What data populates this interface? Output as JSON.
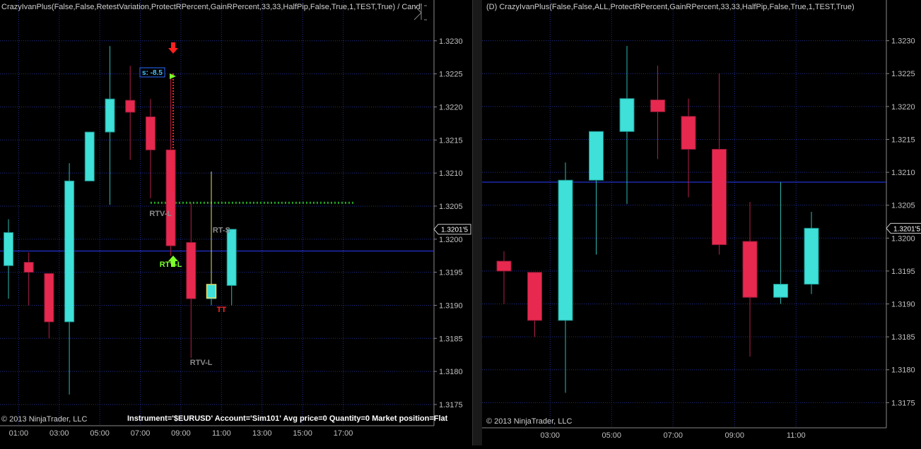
{
  "left_panel": {
    "title": "CrazyIvanPlus(False,False,RetestVariation,ProtectRPercent,GainRPercent,33,33,HalfPip,False,True,1,TEST,True) / Candl",
    "copyright": "© 2013 NinjaTrader, LLC",
    "account_info": "Instrument='$EURUSD' Account='Sim101' Avg price=0 Quantity=0 Market position=Flat",
    "current_price_label": "1.3201'5",
    "stop_label": "s: -8.5"
  },
  "right_panel": {
    "title": "(D) CrazyIvanPlus(False,False,ALL,ProtectRPercent,GainRPercent,33,33,HalfPip,False,True,1,TEST,True)",
    "copyright": "© 2013 NinjaTrader, LLC",
    "current_price_label": "1.3201'5"
  },
  "colors": {
    "up": "#3ee0d8",
    "down": "#e8294f",
    "doji": "#3ee0d8",
    "grid": "#1f2f8f",
    "hline": "#2a3cff",
    "axis_text": "#c0c0c0",
    "dotted_green": "#22aa22",
    "dotted_red": "#ff2020"
  },
  "chart_data": [
    {
      "type": "candlestick",
      "name": "left",
      "y_range": [
        1.31735,
        1.32335
      ],
      "y_ticks": [
        "1.3230",
        "1.3225",
        "1.3220",
        "1.3215",
        "1.3210",
        "1.3205",
        "1.3200",
        "1.3195",
        "1.3190",
        "1.3185",
        "1.3180",
        "1.3175"
      ],
      "x_ticks": [
        "01:00",
        "03:00",
        "05:00",
        "07:00",
        "09:00",
        "11:00",
        "13:00",
        "15:00",
        "17:00"
      ],
      "horizontal_line": 1.31982,
      "candles": [
        {
          "t": "00:30",
          "o": 1.3196,
          "h": 1.3203,
          "l": 1.3191,
          "c": 1.3201
        },
        {
          "t": "01:30",
          "o": 1.31965,
          "h": 1.3198,
          "l": 1.319,
          "c": 1.3195
        },
        {
          "t": "02:30",
          "o": 1.31948,
          "h": 1.31948,
          "l": 1.3185,
          "c": 1.31875
        },
        {
          "t": "03:30",
          "o": 1.31875,
          "h": 1.32115,
          "l": 1.31765,
          "c": 1.32088
        },
        {
          "t": "04:30",
          "o": 1.32088,
          "h": 1.32162,
          "l": 1.32088,
          "c": 1.32162
        },
        {
          "t": "05:30",
          "o": 1.32162,
          "h": 1.32292,
          "l": 1.32052,
          "c": 1.32212
        },
        {
          "t": "06:30",
          "o": 1.3221,
          "h": 1.32262,
          "l": 1.3212,
          "c": 1.32192
        },
        {
          "t": "07:30",
          "o": 1.32185,
          "h": 1.32212,
          "l": 1.32062,
          "c": 1.32135
        },
        {
          "t": "08:30",
          "o": 1.32135,
          "h": 1.3225,
          "l": 1.31975,
          "c": 1.3199
        },
        {
          "t": "09:30",
          "o": 1.31995,
          "h": 1.32055,
          "l": 1.3182,
          "c": 1.3191
        },
        {
          "t": "10:30",
          "o": 1.3191,
          "h": 1.32085,
          "l": 1.319,
          "c": 1.3193
        },
        {
          "t": "11:30",
          "o": 1.3193,
          "h": 1.32015,
          "l": 1.319,
          "c": 1.32015
        }
      ],
      "annotations": [
        {
          "text": "RTV-L",
          "t": "08:00",
          "y": 1.32035,
          "color": "#8a8a8a"
        },
        {
          "text": "RTV-L",
          "t": "08:30",
          "y": 1.31958,
          "color": "#7cff2a"
        },
        {
          "text": "RT-S",
          "t": "11:00",
          "y": 1.3201,
          "color": "#8a8a8a"
        },
        {
          "text": "TT",
          "t": "11:00",
          "y": 1.3189,
          "color": "#ff2a2a"
        },
        {
          "text": "RTV-L",
          "t": "10:00",
          "y": 1.3181,
          "color": "#8a8a8a"
        }
      ],
      "green_dotted_level": 1.32055,
      "green_dotted_range": [
        "07:30",
        "17:30"
      ]
    },
    {
      "type": "candlestick",
      "name": "right",
      "y_range": [
        1.3173,
        1.32335
      ],
      "y_ticks": [
        "1.3230",
        "1.3225",
        "1.3220",
        "1.3215",
        "1.3210",
        "1.3205",
        "1.3200",
        "1.3195",
        "1.3190",
        "1.3185",
        "1.3180",
        "1.3175"
      ],
      "x_ticks": [
        "03:00",
        "05:00",
        "07:00",
        "09:00",
        "11:00"
      ],
      "horizontal_line": 1.32085,
      "candles": [
        {
          "t": "01:30",
          "o": 1.31965,
          "h": 1.3198,
          "l": 1.319,
          "c": 1.3195
        },
        {
          "t": "02:30",
          "o": 1.31948,
          "h": 1.31948,
          "l": 1.3185,
          "c": 1.31875
        },
        {
          "t": "03:30",
          "o": 1.31875,
          "h": 1.32115,
          "l": 1.31765,
          "c": 1.32088
        },
        {
          "t": "04:30",
          "o": 1.32088,
          "h": 1.32162,
          "l": 1.31975,
          "c": 1.32162
        },
        {
          "t": "05:30",
          "o": 1.32162,
          "h": 1.32292,
          "l": 1.32052,
          "c": 1.32212
        },
        {
          "t": "06:30",
          "o": 1.3221,
          "h": 1.32262,
          "l": 1.3212,
          "c": 1.32192
        },
        {
          "t": "07:30",
          "o": 1.32185,
          "h": 1.32212,
          "l": 1.32062,
          "c": 1.32135
        },
        {
          "t": "08:30",
          "o": 1.32135,
          "h": 1.3225,
          "l": 1.31975,
          "c": 1.3199
        },
        {
          "t": "09:30",
          "o": 1.31995,
          "h": 1.32055,
          "l": 1.3182,
          "c": 1.3191
        },
        {
          "t": "10:30",
          "o": 1.3191,
          "h": 1.32085,
          "l": 1.319,
          "c": 1.3193
        },
        {
          "t": "11:30",
          "o": 1.3193,
          "h": 1.3204,
          "l": 1.31915,
          "c": 1.32015
        }
      ]
    }
  ]
}
